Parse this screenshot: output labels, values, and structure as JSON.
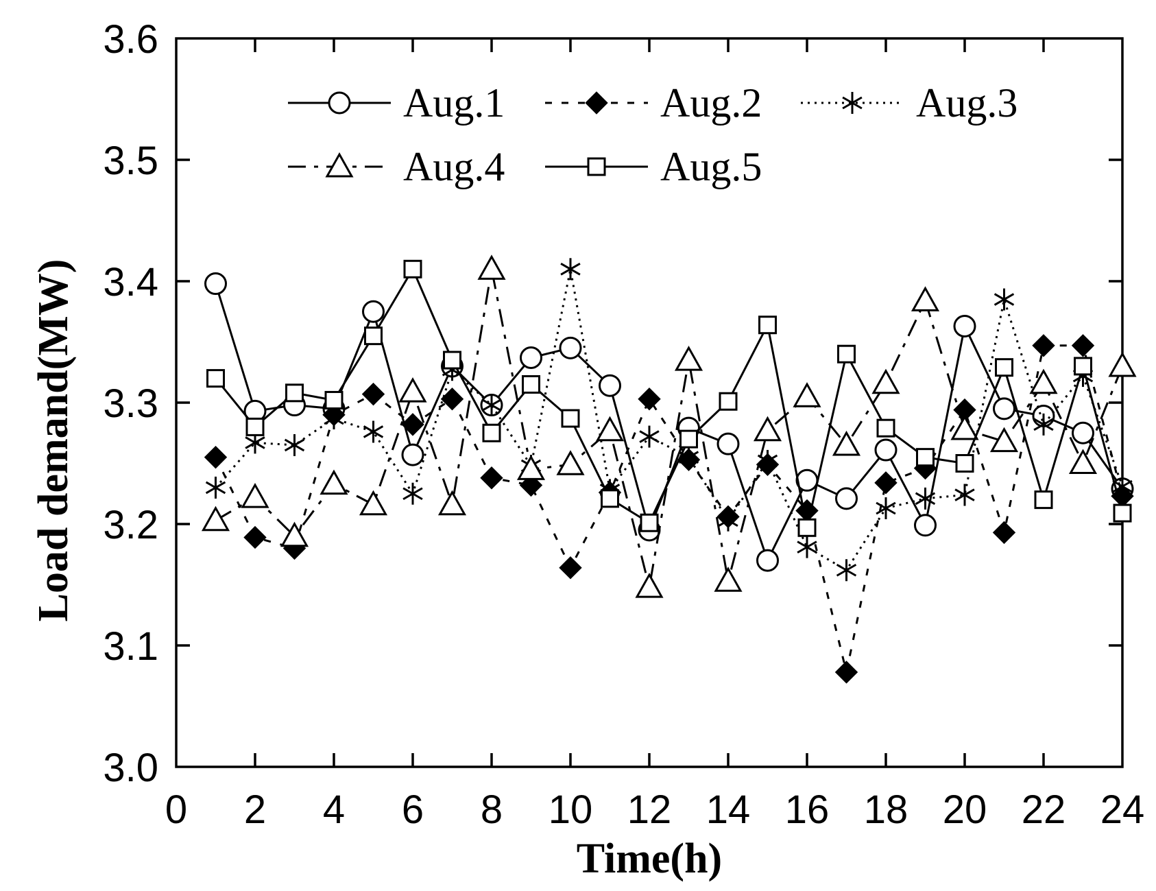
{
  "chart_data": {
    "type": "line",
    "title": "",
    "xlabel": "Time(h)",
    "ylabel": "Load demand(MW)",
    "xlim": [
      0,
      24
    ],
    "ylim": [
      3.0,
      3.6
    ],
    "xticks": [
      0,
      2,
      4,
      6,
      8,
      10,
      12,
      14,
      16,
      18,
      20,
      22,
      24
    ],
    "yticks": [
      3.0,
      3.1,
      3.2,
      3.3,
      3.4,
      3.5,
      3.6
    ],
    "xtick_labels": [
      "0",
      "2",
      "4",
      "6",
      "8",
      "10",
      "12",
      "14",
      "16",
      "18",
      "20",
      "22",
      "24"
    ],
    "ytick_labels": [
      "3.0",
      "3.1",
      "3.2",
      "3.3",
      "3.4",
      "3.5",
      "3.6"
    ],
    "grid": false,
    "legend_position": "top",
    "x": [
      1,
      2,
      3,
      4,
      5,
      6,
      7,
      8,
      9,
      10,
      11,
      12,
      13,
      14,
      15,
      16,
      17,
      18,
      19,
      20,
      21,
      22,
      23,
      24
    ],
    "series": [
      {
        "name": "Aug.1",
        "marker": "circle-open",
        "line": "solid",
        "color": "#000000",
        "values": [
          3.398,
          3.293,
          3.298,
          3.295,
          3.375,
          3.257,
          3.33,
          3.298,
          3.337,
          3.345,
          3.314,
          3.195,
          3.279,
          3.266,
          3.17,
          3.236,
          3.221,
          3.261,
          3.199,
          3.363,
          3.295,
          3.289,
          3.275,
          3.229
        ]
      },
      {
        "name": "Aug.2",
        "marker": "diamond-filled",
        "line": "dashed",
        "color": "#000000",
        "values": [
          3.255,
          3.189,
          3.18,
          3.29,
          3.307,
          3.282,
          3.303,
          3.238,
          3.232,
          3.164,
          3.226,
          3.303,
          3.253,
          3.206,
          3.249,
          3.211,
          3.078,
          3.234,
          3.246,
          3.294,
          3.193,
          3.347,
          3.347,
          3.223
        ]
      },
      {
        "name": "Aug.3",
        "marker": "asterisk",
        "line": "dotted",
        "color": "#000000",
        "values": [
          3.23,
          3.267,
          3.265,
          3.287,
          3.276,
          3.225,
          3.327,
          3.298,
          3.248,
          3.41,
          3.228,
          3.272,
          3.255,
          3.203,
          3.252,
          3.181,
          3.162,
          3.213,
          3.221,
          3.224,
          3.385,
          3.282,
          3.322,
          3.231
        ]
      },
      {
        "name": "Aug.4",
        "marker": "triangle-open",
        "line": "dash-dot",
        "color": "#000000",
        "values": [
          3.203,
          3.222,
          3.19,
          3.233,
          3.216,
          3.309,
          3.216,
          3.41,
          3.245,
          3.249,
          3.277,
          3.148,
          3.335,
          3.153,
          3.277,
          3.305,
          3.265,
          3.316,
          3.384,
          3.278,
          3.268,
          3.316,
          3.25,
          3.33
        ]
      },
      {
        "name": "Aug.5",
        "marker": "square-open",
        "line": "solid",
        "color": "#000000",
        "values": [
          3.32,
          3.28,
          3.308,
          3.302,
          3.355,
          3.41,
          3.335,
          3.275,
          3.315,
          3.287,
          3.221,
          3.201,
          3.27,
          3.301,
          3.364,
          3.197,
          3.34,
          3.279,
          3.255,
          3.25,
          3.329,
          3.22,
          3.33,
          3.209
        ]
      }
    ]
  }
}
